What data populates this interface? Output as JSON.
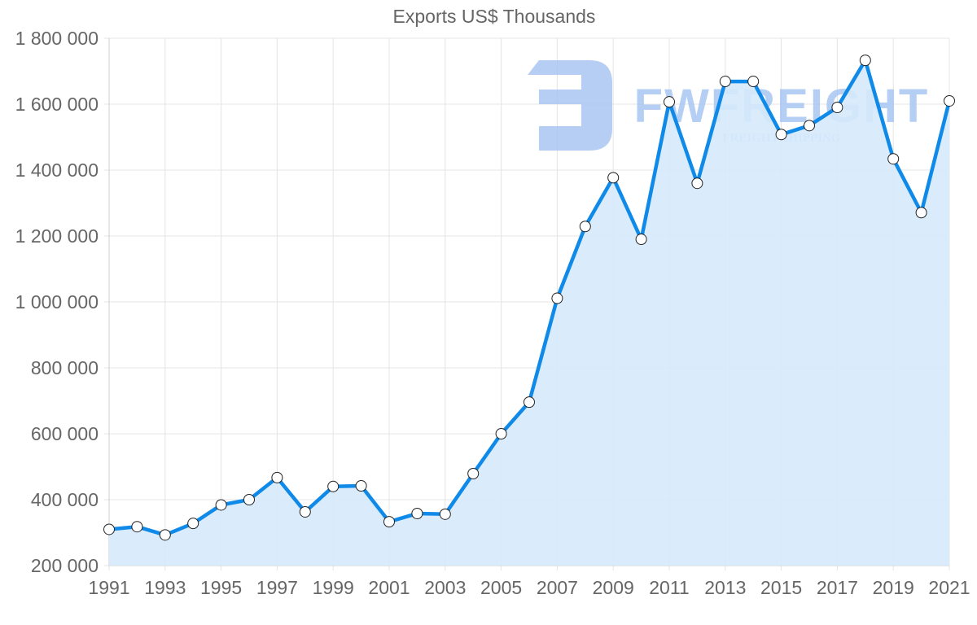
{
  "chart_data": {
    "type": "line",
    "title": "Exports US$ Thousands",
    "xlabel": "",
    "ylabel": "",
    "x": [
      1991,
      1992,
      1993,
      1994,
      1995,
      1996,
      1997,
      1998,
      1999,
      2000,
      2001,
      2002,
      2003,
      2004,
      2005,
      2006,
      2007,
      2008,
      2009,
      2010,
      2011,
      2012,
      2013,
      2014,
      2015,
      2016,
      2017,
      2018,
      2019,
      2020,
      2021
    ],
    "series": [
      {
        "name": "Exports US$ Thousands",
        "values": [
          310000,
          318000,
          293000,
          328000,
          384000,
          400000,
          467000,
          363000,
          440000,
          442000,
          333000,
          358000,
          356000,
          479000,
          600000,
          696000,
          1011000,
          1229000,
          1377000,
          1190000,
          1607000,
          1360000,
          1669000,
          1669000,
          1508000,
          1535000,
          1590000,
          1733000,
          1434000,
          1271000,
          1610000
        ],
        "line_color": "#0f8ae8",
        "fill_color": "#d6eafc",
        "point_fill": "#ffffff",
        "point_stroke": "#222222"
      }
    ],
    "xticks": [
      "1991",
      "1993",
      "1995",
      "1997",
      "1999",
      "2001",
      "2003",
      "2005",
      "2007",
      "2009",
      "2011",
      "2013",
      "2015",
      "2017",
      "2019",
      "2021"
    ],
    "yticks": [
      "200 000",
      "400 000",
      "600 000",
      "800 000",
      "1 000 000",
      "1 200 000",
      "1 400 000",
      "1 600 000",
      "1 800 000"
    ],
    "ylim": [
      200000,
      1800000
    ],
    "xlim": [
      1991,
      2021
    ],
    "grid": true,
    "legend": "none",
    "filled_area": true
  },
  "watermark": {
    "brand": "FWFREIGHT",
    "tagline": "FREIGHT SHIPPING",
    "logo_icon": "fw-logo-icon",
    "color": "#a9c6f2"
  },
  "colors": {
    "grid": "#e4e4e4",
    "axis_text": "#666666"
  }
}
